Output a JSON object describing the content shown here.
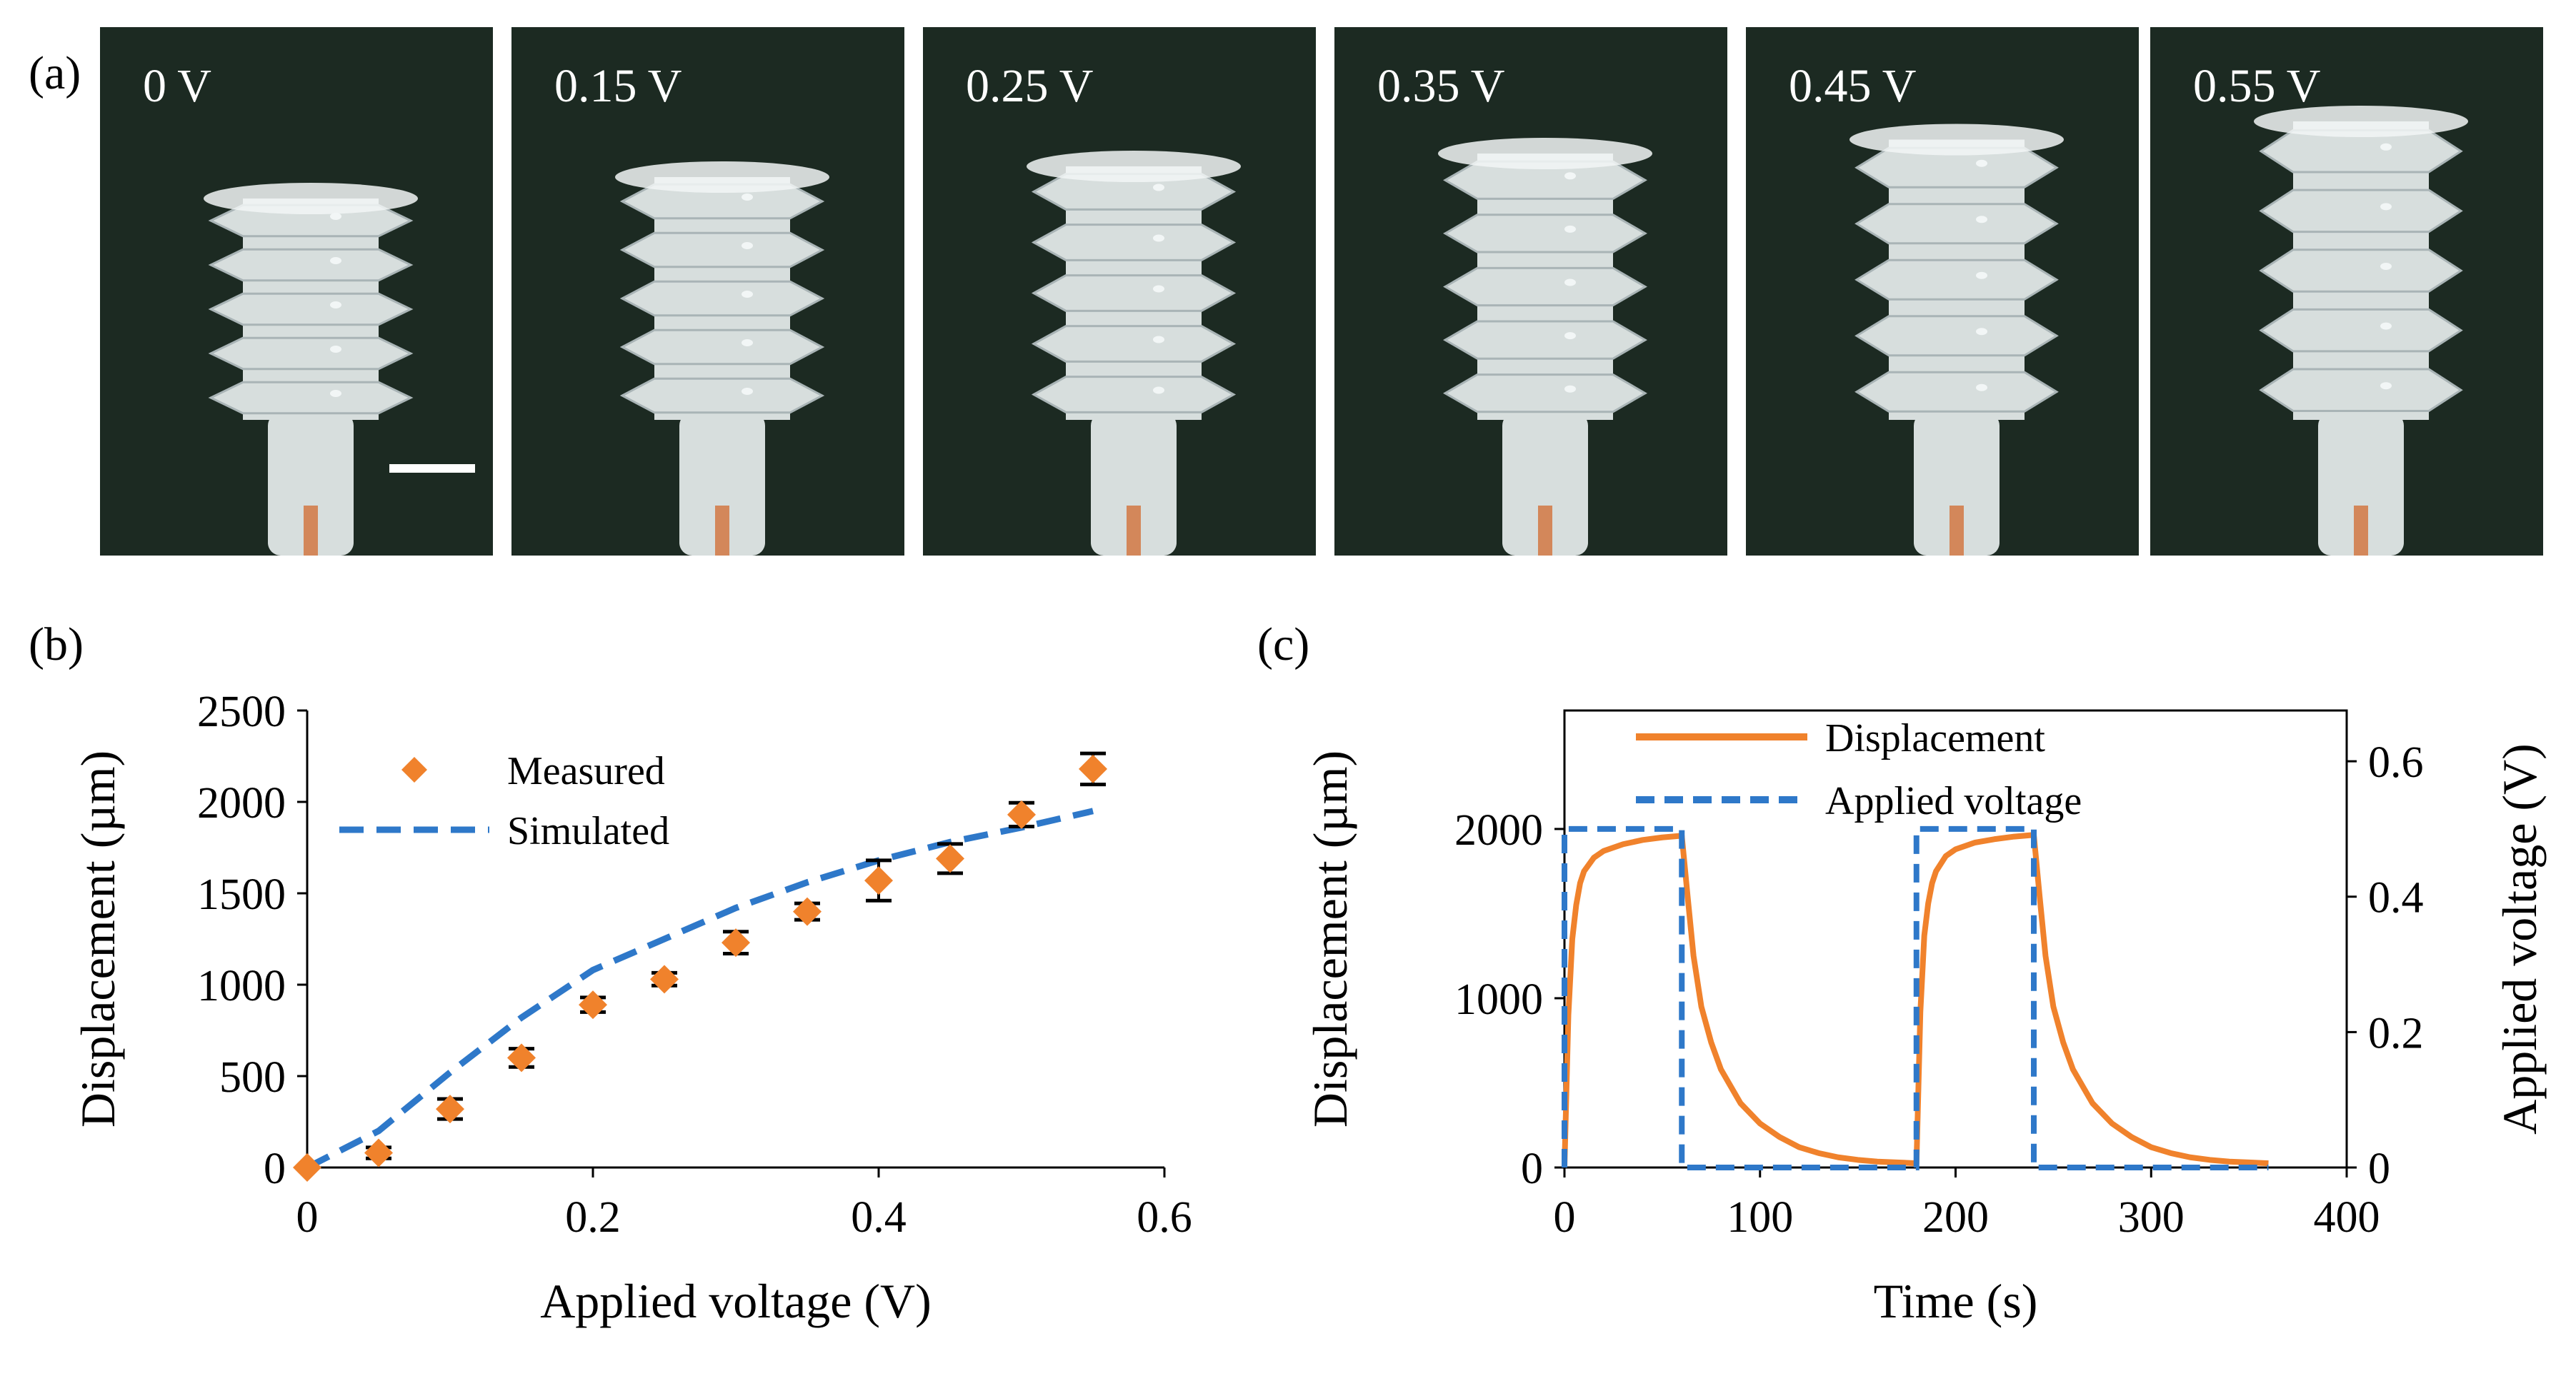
{
  "panel_a": {
    "label": "(a)",
    "photos": [
      {
        "voltage_label": "0 V",
        "extension": 0.0
      },
      {
        "voltage_label": "0.15 V",
        "extension": 0.2
      },
      {
        "voltage_label": "0.25 V",
        "extension": 0.3
      },
      {
        "voltage_label": "0.35 V",
        "extension": 0.42
      },
      {
        "voltage_label": "0.45 V",
        "extension": 0.55
      },
      {
        "voltage_label": "0.55 V",
        "extension": 0.72
      }
    ],
    "colors": {
      "background": "#1c2a22",
      "body": "#d7dedd",
      "ridge_shadow": "#a9b4b6",
      "highlight": "#f2f6f6",
      "wire": "#d2703a"
    }
  },
  "panel_b": {
    "label": "(b)"
  },
  "panel_c": {
    "label": "(c)"
  },
  "chart_data": [
    {
      "type": "scatter",
      "title": "",
      "xlabel": "Applied voltage (V)",
      "ylabel": "Displacement (µm)",
      "xlim": [
        0,
        0.6
      ],
      "ylim": [
        0,
        2500
      ],
      "xticks": [
        "0",
        "0.2",
        "0.4",
        "0.6"
      ],
      "yticks": [
        "0",
        "500",
        "1000",
        "1500",
        "2000",
        "2500"
      ],
      "legend": [
        "Measured",
        "Simulated"
      ],
      "series": [
        {
          "name": "Measured",
          "color": "#f0822c",
          "marker": "diamond",
          "x": [
            0,
            0.05,
            0.1,
            0.15,
            0.2,
            0.25,
            0.3,
            0.35,
            0.4,
            0.45,
            0.5,
            0.55
          ],
          "y": [
            0,
            80,
            320,
            600,
            890,
            1030,
            1230,
            1400,
            1570,
            1690,
            1930,
            2180
          ],
          "error": [
            0,
            30,
            55,
            50,
            40,
            35,
            60,
            45,
            110,
            80,
            65,
            85
          ]
        },
        {
          "name": "Simulated",
          "color": "#2e78c9",
          "style": "dashed",
          "x": [
            0,
            0.05,
            0.1,
            0.15,
            0.2,
            0.25,
            0.3,
            0.35,
            0.4,
            0.45,
            0.5,
            0.55
          ],
          "y": [
            0,
            200,
            520,
            820,
            1080,
            1250,
            1420,
            1560,
            1680,
            1780,
            1860,
            1950
          ]
        }
      ]
    },
    {
      "type": "line",
      "title": "",
      "xlabel": "Time (s)",
      "ylabel": "Displacement (µm)",
      "y2label": "Applied voltage (V)",
      "xlim": [
        0,
        400
      ],
      "ylim": [
        0,
        2700
      ],
      "y2lim": [
        0,
        0.675
      ],
      "xticks": [
        "0",
        "100",
        "200",
        "300",
        "400"
      ],
      "yticks": [
        "0",
        "1000",
        "2000"
      ],
      "y2ticks": [
        "0",
        "0.2",
        "0.4",
        "0.6"
      ],
      "legend": [
        "Displacement",
        "Applied voltage"
      ],
      "series": [
        {
          "name": "Displacement",
          "color": "#f0822c",
          "axis": "left",
          "x": [
            0,
            2,
            4,
            6,
            8,
            10,
            15,
            20,
            30,
            40,
            50,
            60,
            63,
            66,
            70,
            75,
            80,
            90,
            100,
            110,
            120,
            130,
            140,
            150,
            160,
            170,
            180,
            182,
            184,
            186,
            188,
            190,
            195,
            200,
            210,
            220,
            230,
            240,
            243,
            246,
            250,
            255,
            260,
            270,
            280,
            290,
            300,
            310,
            320,
            330,
            340,
            350,
            360
          ],
          "y": [
            0,
            900,
            1350,
            1550,
            1680,
            1750,
            1830,
            1870,
            1910,
            1935,
            1950,
            1960,
            1600,
            1250,
            950,
            740,
            580,
            380,
            260,
            180,
            120,
            85,
            60,
            45,
            35,
            30,
            25,
            920,
            1370,
            1560,
            1680,
            1750,
            1840,
            1880,
            1920,
            1940,
            1955,
            1965,
            1600,
            1250,
            950,
            740,
            580,
            380,
            260,
            180,
            120,
            85,
            60,
            45,
            35,
            30,
            25
          ]
        },
        {
          "name": "Applied voltage",
          "color": "#2e78c9",
          "axis": "right",
          "style": "dashed",
          "x": [
            0,
            0,
            60,
            60,
            180,
            180,
            240,
            240,
            360
          ],
          "y": [
            0,
            0.5,
            0.5,
            0,
            0,
            0.5,
            0.5,
            0,
            0
          ]
        }
      ]
    }
  ]
}
